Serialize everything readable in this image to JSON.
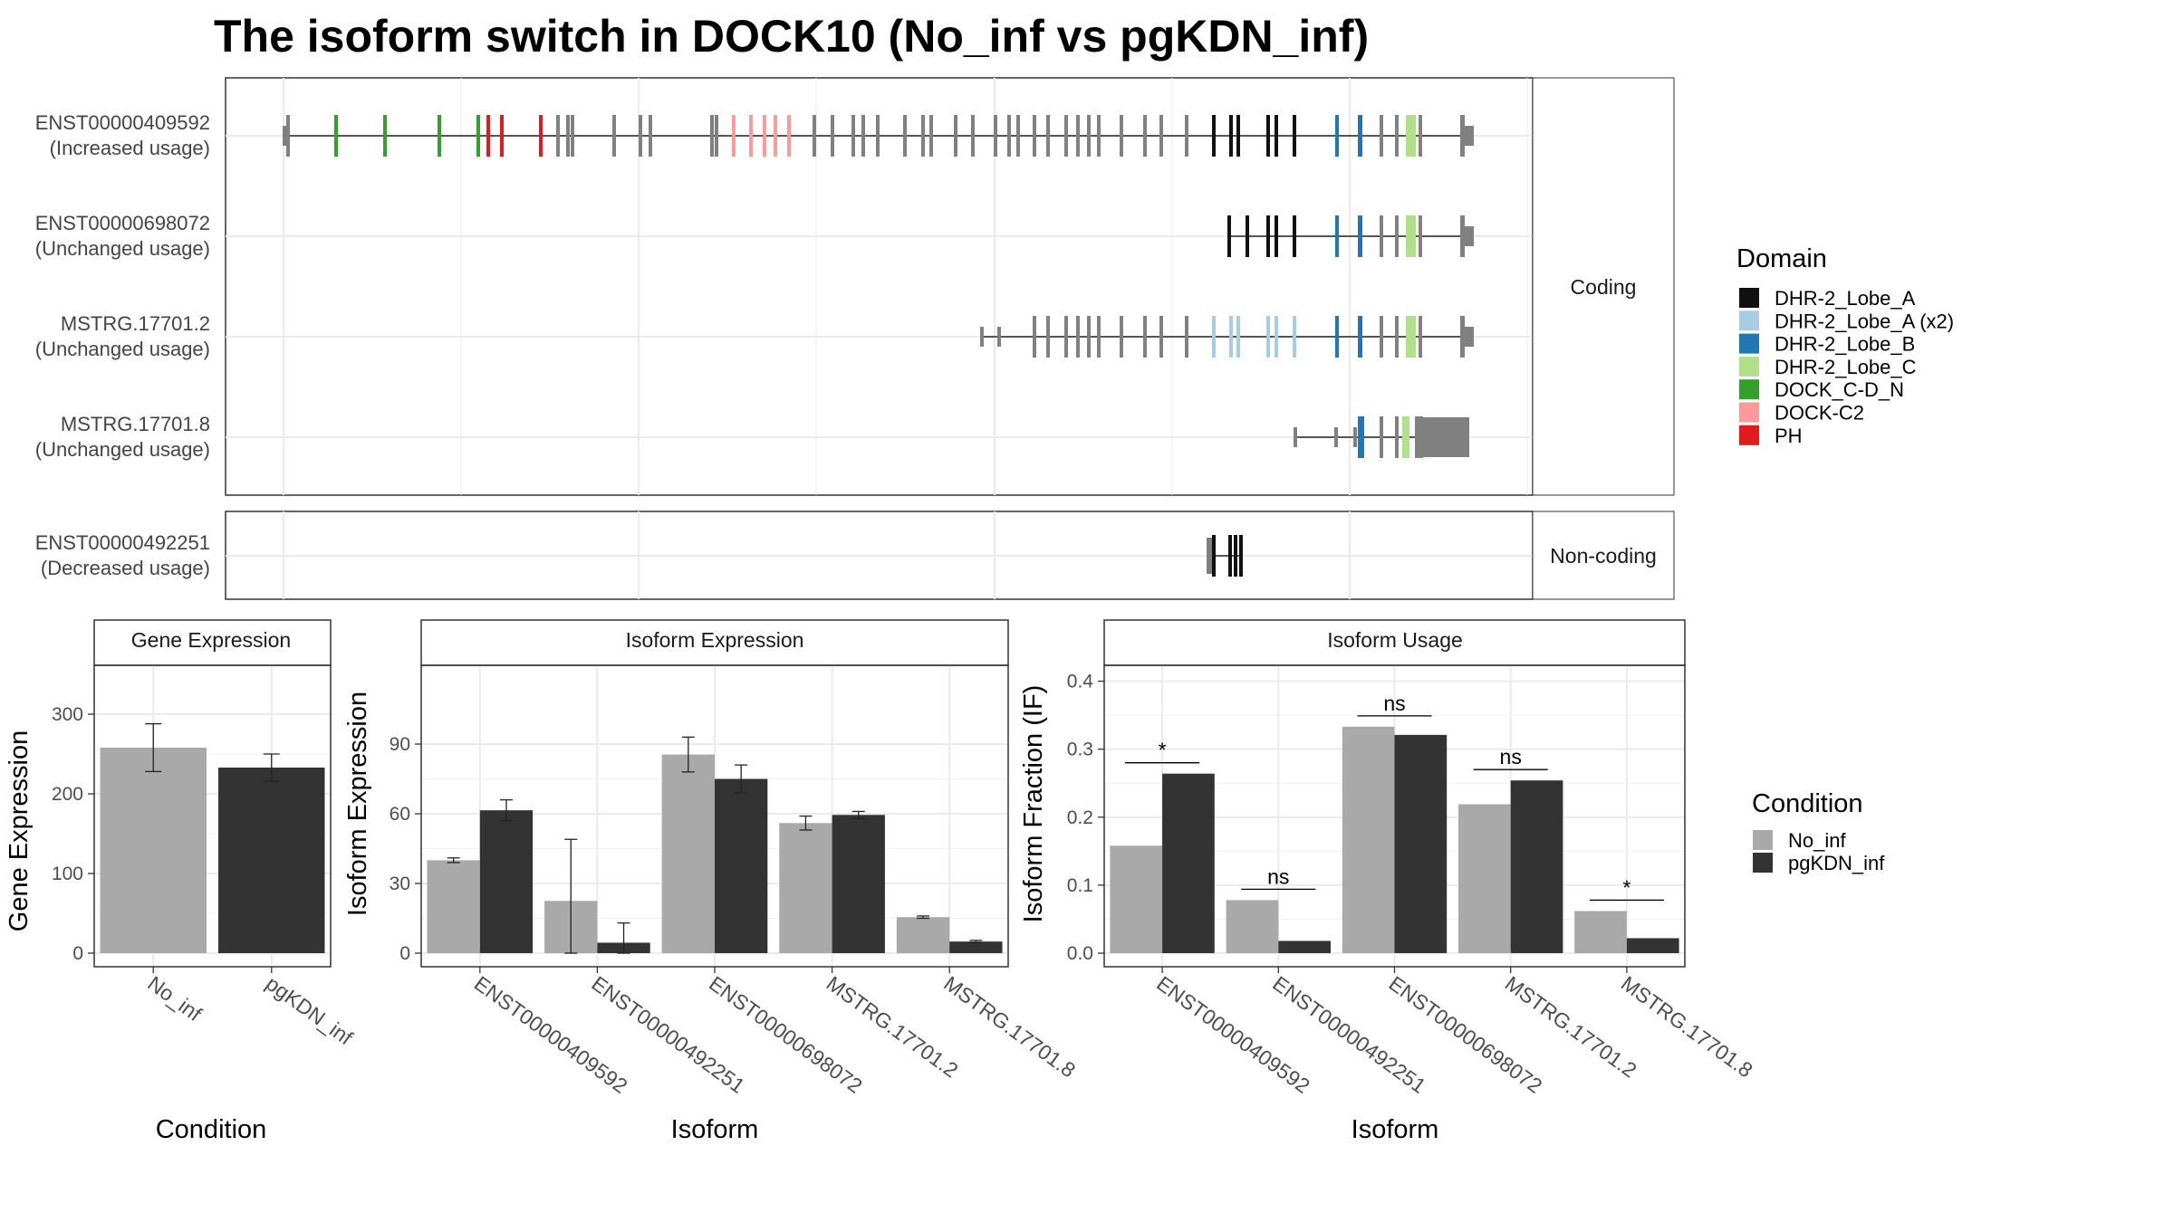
{
  "title": "The isoform switch in DOCK10 (No_inf vs pgKDN_inf)",
  "structure": {
    "strip_coding": "Coding",
    "strip_noncoding": "Non-coding",
    "coding": [
      {
        "id": "ENST00000409592",
        "usage": "(Increased usage)"
      },
      {
        "id": "ENST00000698072",
        "usage": "(Unchanged usage)"
      },
      {
        "id": "MSTRG.17701.2",
        "usage": "(Unchanged usage)"
      },
      {
        "id": "MSTRG.17701.8",
        "usage": "(Unchanged usage)"
      }
    ],
    "noncoding": [
      {
        "id": "ENST00000492251",
        "usage": "(Decreased usage)"
      }
    ]
  },
  "domain_legend": {
    "title": "Domain",
    "items": [
      {
        "label": "DHR-2_Lobe_A",
        "color": "#111111"
      },
      {
        "label": "DHR-2_Lobe_A (x2)",
        "color": "#a6cee3"
      },
      {
        "label": "DHR-2_Lobe_B",
        "color": "#1f78b4"
      },
      {
        "label": "DHR-2_Lobe_C",
        "color": "#b2df8a"
      },
      {
        "label": "DOCK_C-D_N",
        "color": "#33a02c"
      },
      {
        "label": "DOCK-C2",
        "color": "#fb9a99"
      },
      {
        "label": "PH",
        "color": "#e31a1c"
      }
    ]
  },
  "condition_legend": {
    "title": "Condition",
    "items": [
      {
        "label": "No_inf",
        "color": "#a9a9a9"
      },
      {
        "label": "pgKDN_inf",
        "color": "#333333"
      }
    ]
  },
  "chart_data": [
    {
      "type": "bar",
      "title": "Gene Expression",
      "xlabel": "Condition",
      "ylabel": "Gene Expression",
      "ylim": [
        0,
        350
      ],
      "yticks": [
        0,
        100,
        200,
        300
      ],
      "categories": [
        "No_inf",
        "pgKDN_inf"
      ],
      "values": [
        258,
        233
      ],
      "errors": [
        [
          228,
          288
        ],
        [
          216,
          250
        ]
      ],
      "colors": [
        "#a9a9a9",
        "#333333"
      ]
    },
    {
      "type": "bar",
      "title": "Isoform Expression",
      "xlabel": "Isoform",
      "ylabel": "Isoform Expression",
      "ylim": [
        0,
        120
      ],
      "yticks": [
        0,
        30,
        60,
        90
      ],
      "categories": [
        "ENST00000409592",
        "ENST00000492251",
        "ENST00000698072",
        "MSTRG.17701.2",
        "MSTRG.17701.8"
      ],
      "series": [
        {
          "name": "No_inf",
          "values": [
            40,
            22.5,
            85.5,
            56,
            15.5
          ],
          "errors": [
            [
              39,
              41
            ],
            [
              0,
              49
            ],
            [
              78,
              93
            ],
            [
              53,
              59
            ],
            [
              15,
              16
            ]
          ]
        },
        {
          "name": "pgKDN_inf",
          "values": [
            61.5,
            4.5,
            75,
            59.5,
            5
          ],
          "errors": [
            [
              57,
              66
            ],
            [
              0,
              13
            ],
            [
              69,
              81
            ],
            [
              58,
              61
            ],
            [
              4.5,
              5.5
            ]
          ]
        }
      ]
    },
    {
      "type": "bar",
      "title": "Isoform Usage",
      "xlabel": "Isoform",
      "ylabel": "Isoform Fraction (IF)",
      "ylim": [
        0,
        0.41
      ],
      "yticks": [
        0.0,
        0.1,
        0.2,
        0.3,
        0.4
      ],
      "ytick_labels": [
        "0.0",
        "0.1",
        "0.2",
        "0.3",
        "0.4"
      ],
      "categories": [
        "ENST00000409592",
        "ENST00000492251",
        "ENST00000698072",
        "MSTRG.17701.2",
        "MSTRG.17701.8"
      ],
      "series": [
        {
          "name": "No_inf",
          "values": [
            0.158,
            0.078,
            0.333,
            0.219,
            0.062
          ]
        },
        {
          "name": "pgKDN_inf",
          "values": [
            0.264,
            0.018,
            0.321,
            0.254,
            0.022
          ]
        }
      ],
      "significance": [
        "*",
        "ns",
        "ns",
        "ns",
        "*"
      ]
    }
  ]
}
